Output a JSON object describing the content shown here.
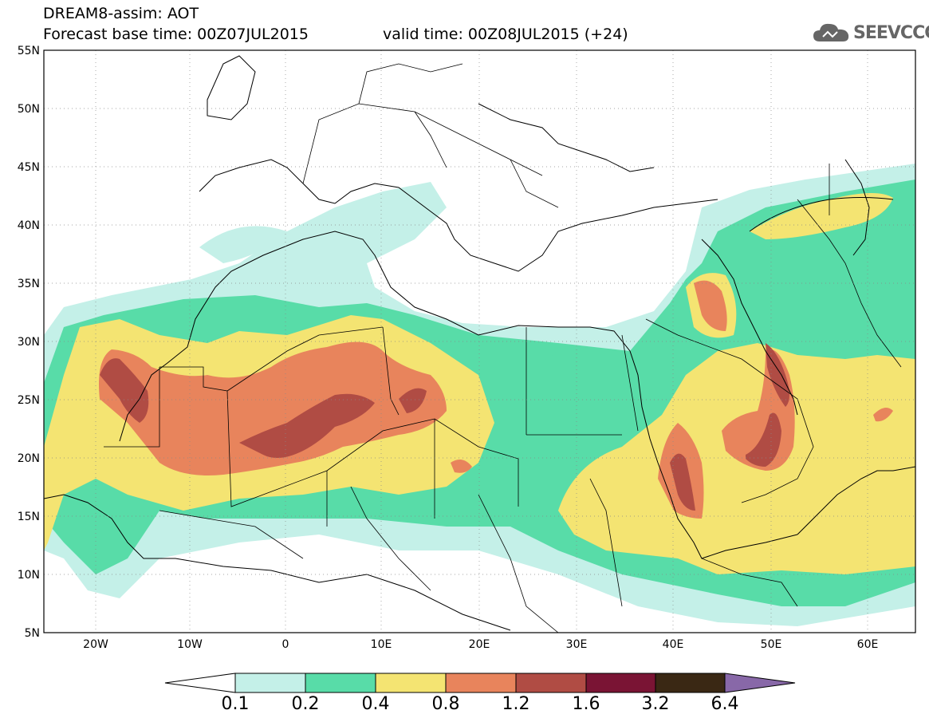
{
  "header": {
    "line1": "DREAM8-assim: AOT",
    "line2": "Forecast base time: 00Z07JUL2015",
    "line3": "valid time: 00Z08JUL2015 (+24)"
  },
  "logo": {
    "text": "SEEVCCC",
    "icon": "cloud-icon"
  },
  "map": {
    "lon_range": [
      -25,
      65
    ],
    "lat_range": [
      5,
      55
    ],
    "lat_ticks": [
      "55N",
      "50N",
      "45N",
      "40N",
      "35N",
      "30N",
      "25N",
      "20N",
      "15N",
      "10N",
      "5N"
    ],
    "lon_ticks": [
      "20W",
      "10W",
      "0",
      "10E",
      "20E",
      "30E",
      "40E",
      "50E",
      "60E"
    ]
  },
  "colorbar": {
    "levels": [
      "0.1",
      "0.2",
      "0.4",
      "0.8",
      "1.2",
      "1.6",
      "3.2",
      "6.4"
    ],
    "colors": [
      "#c4f0e8",
      "#58dca8",
      "#f4e472",
      "#e8845c",
      "#b04c44",
      "#7a1434",
      "#3a2814",
      "#8868a8"
    ],
    "below_color": "#ffffff"
  }
}
